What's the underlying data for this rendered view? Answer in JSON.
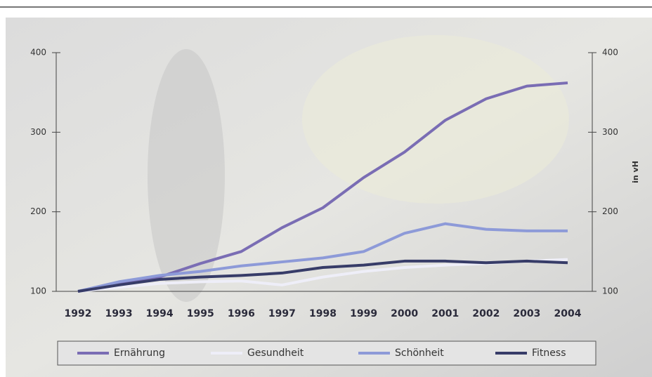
{
  "chart_data": {
    "type": "line",
    "y2_label": "in vH",
    "categories": [
      "1992",
      "1993",
      "1994",
      "1995",
      "1996",
      "1997",
      "1998",
      "1999",
      "2000",
      "2001",
      "2002",
      "2003",
      "2004"
    ],
    "series": [
      {
        "name": "Ernährung",
        "color": "#7a6db4",
        "values": [
          100,
          110,
          118,
          135,
          150,
          180,
          205,
          243,
          275,
          315,
          342,
          358,
          362
        ]
      },
      {
        "name": "Gesundheit",
        "color": "#eeeef8",
        "values": [
          100,
          105,
          110,
          112,
          113,
          108,
          118,
          125,
          130,
          133,
          135,
          138,
          140
        ]
      },
      {
        "name": "Schönheit",
        "color": "#8d9ad8",
        "values": [
          100,
          112,
          120,
          125,
          132,
          137,
          142,
          150,
          173,
          185,
          178,
          176,
          176
        ]
      },
      {
        "name": "Fitness",
        "color": "#373c68",
        "values": [
          100,
          108,
          115,
          118,
          120,
          123,
          130,
          133,
          138,
          138,
          136,
          138,
          136
        ]
      }
    ],
    "ylim": [
      100,
      400
    ],
    "yticks": [
      100,
      200,
      300,
      400
    ],
    "y2lim": [
      100,
      400
    ],
    "y2ticks": [
      100,
      200,
      300,
      400
    ],
    "grid": false,
    "legend": "bottom"
  }
}
